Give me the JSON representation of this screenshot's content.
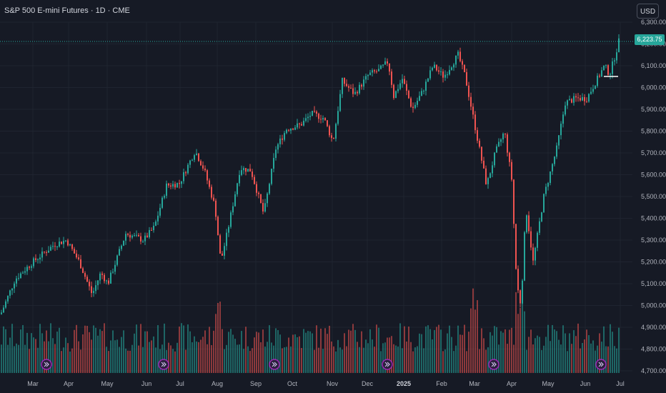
{
  "header": {
    "title": "S&P 500 E-mini Futures · 1D · CME",
    "currency_button": "USD"
  },
  "last_price_label": "6,223.75",
  "colors": {
    "background": "#161a25",
    "up": "#26a69a",
    "down": "#ef5350",
    "grid": "#1f2430",
    "event_marker": "#9c27b0"
  },
  "chart_data": {
    "type": "candlestick",
    "title": "S&P 500 E-mini Futures · 1D · CME",
    "x_axis_labels": [
      "Mar",
      "Apr",
      "May",
      "Jun",
      "Jul",
      "Aug",
      "Sep",
      "Oct",
      "Nov",
      "Dec",
      "2025",
      "Feb",
      "Mar",
      "Apr",
      "May",
      "Jun",
      "Jul"
    ],
    "y_axis_labels": [
      "6,300.00",
      "6,200.00",
      "6,100.00",
      "6,000.00",
      "5,900.00",
      "5,800.00",
      "5,700.00",
      "5,600.00",
      "5,500.00",
      "5,400.00",
      "5,300.00",
      "5,200.00",
      "5,100.00",
      "5,000.00",
      "4,900.00",
      "4,800.00",
      "4,700.00"
    ],
    "y_range": [
      4700,
      6300
    ],
    "last_price": 6223.75,
    "closes_approx": [
      [
        "Mar 2024",
        5100
      ],
      [
        "Apr 2024",
        5300
      ],
      [
        "mid-Apr 2024",
        5050
      ],
      [
        "May 2024",
        5150
      ],
      [
        "Jun 2024",
        5350
      ],
      [
        "Jul 2024",
        5600
      ],
      [
        "mid-Jul 2024",
        5700
      ],
      [
        "Aug 2024",
        5250
      ],
      [
        "Sep 2024",
        5650
      ],
      [
        "mid-Sep 2024",
        5450
      ],
      [
        "Oct 2024",
        5800
      ],
      [
        "Nov 2024",
        5750
      ],
      [
        "mid-Nov 2024",
        6050
      ],
      [
        "Dec 2024",
        6100
      ],
      [
        "2025",
        5900
      ],
      [
        "Feb 2025",
        6150
      ],
      [
        "Mar 2025",
        5750
      ],
      [
        "mid-Mar 2025",
        5550
      ],
      [
        "Apr 2025",
        5000
      ],
      [
        "mid-Apr 2025",
        5350
      ],
      [
        "May 2025",
        5700
      ],
      [
        "Jun 2025",
        6000
      ],
      [
        "Jul 2025",
        6223.75
      ]
    ],
    "volume": "shown as bars along bottom",
    "grid": true
  },
  "event_markers": [
    "event-marker",
    "event-marker",
    "event-marker",
    "event-marker",
    "event-marker",
    "event-marker"
  ]
}
